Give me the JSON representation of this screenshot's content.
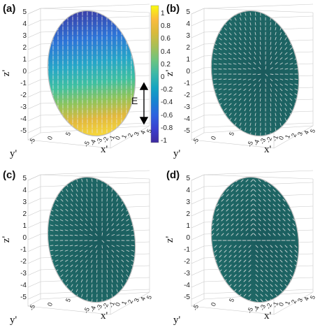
{
  "panels": [
    {
      "id": "a",
      "label": "(a)",
      "coloring": "gradient",
      "texture": "vertical"
    },
    {
      "id": "b",
      "label": "(b)",
      "coloring": "teal",
      "texture": "radial"
    },
    {
      "id": "c",
      "label": "(c)",
      "coloring": "teal",
      "texture": "radial"
    },
    {
      "id": "d",
      "label": "(d)",
      "coloring": "teal",
      "texture": "cross"
    }
  ],
  "axes": {
    "z_label": "z'",
    "y_label": "y'",
    "x_label": "x'",
    "z_ticks": [
      "5",
      "4",
      "3",
      "2",
      "1",
      "0",
      "-1",
      "-2",
      "-3",
      "-4",
      "-5"
    ],
    "y_ticks": [
      "-5",
      "0",
      "5"
    ],
    "x_ticks": [
      "-5",
      "-4",
      "-3",
      "-2",
      "-1",
      "0",
      "1",
      "2",
      "3",
      "4",
      "5"
    ]
  },
  "colorbar": {
    "ticks": [
      "1",
      "0.8",
      "0.6",
      "0.4",
      "0.2",
      "0",
      "-0.2",
      "-0.4",
      "-0.6",
      "-0.8",
      "-1"
    ],
    "colors": [
      "#f9fb0e",
      "#fbbc3d",
      "#d8ba3a",
      "#a6bf57",
      "#6cc480",
      "#3bb8a8",
      "#13a4c1",
      "#1683d1",
      "#2e62e0",
      "#3a40cf",
      "#3e2a9e"
    ]
  },
  "field_label": "E",
  "colors": {
    "teal": "#1a5a5c",
    "teal_light": "#2f8b86",
    "arrow": "#e6e6e6"
  }
}
